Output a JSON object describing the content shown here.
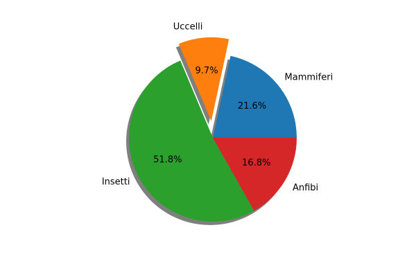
{
  "chart_data": {
    "type": "pie",
    "title": "",
    "slices": [
      {
        "label": "Mammiferi",
        "value": 21.6,
        "pct_label": "21.6%",
        "color": "#1f77b4",
        "exploded": false
      },
      {
        "label": "Uccelli",
        "value": 9.7,
        "pct_label": "9.7%",
        "color": "#ff7f0e",
        "exploded": true
      },
      {
        "label": "Insetti",
        "value": 51.8,
        "pct_label": "51.8%",
        "color": "#2ca02c",
        "exploded": false
      },
      {
        "label": "Anfibi",
        "value": 16.8,
        "pct_label": "16.8%",
        "color": "#d62728",
        "exploded": false
      }
    ],
    "start_angle": 0,
    "direction": "counterclockwise",
    "shadow": true,
    "legend": "none"
  }
}
